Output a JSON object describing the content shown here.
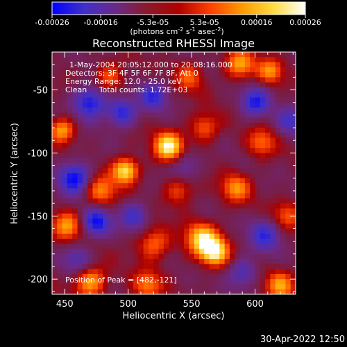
{
  "colorbar": {
    "tick_labels": [
      "-0.00026",
      "-0.00016",
      "-5.3e-05",
      "5.3e-05",
      "0.00016",
      "0.00026"
    ],
    "unit_parts": [
      "(photons cm",
      "-2",
      " s",
      "-1",
      " asec",
      "-2",
      ")"
    ],
    "range": [
      -0.00026,
      0.00026
    ],
    "stops": [
      "#0000ff",
      "#4030c8",
      "#6a2a8a",
      "#8a1a2a",
      "#b00000",
      "#ff4000",
      "#ff9a00",
      "#ffdc40",
      "#ffffff"
    ]
  },
  "chart_data": {
    "type": "heatmap",
    "title": "Reconstructed RHESSI Image",
    "xlabel": "Heliocentric X (arcsec)",
    "ylabel": "Heliocentric Y (arcsec)",
    "xlim": [
      440,
      632
    ],
    "ylim": [
      -212,
      -20
    ],
    "x_ticks": [
      450,
      500,
      550,
      600
    ],
    "y_ticks": [
      -50,
      -100,
      -150,
      -200
    ],
    "grid": false,
    "annotations": [
      "1-May-2004 20:05:12.000 to 20:08:16.000",
      "Detectors: 3F 4F 5F 6F 7F 8F, Att 0",
      "Energy Range: 12.0 - 25.0 keV",
      "Clean     Total counts: 1.72E+03"
    ],
    "peak_label": "Position of Peak = [482,-121]",
    "sources": [
      {
        "x": 532,
        "y": -95,
        "amp": 1.0,
        "w": 8
      },
      {
        "x": 498,
        "y": -114,
        "amp": 0.95,
        "w": 7
      },
      {
        "x": 568,
        "y": -178,
        "amp": 0.95,
        "w": 8
      },
      {
        "x": 558,
        "y": -168,
        "amp": 0.8,
        "w": 9
      },
      {
        "x": 448,
        "y": -82,
        "amp": 0.7,
        "w": 7
      },
      {
        "x": 452,
        "y": -158,
        "amp": 0.65,
        "w": 8
      },
      {
        "x": 588,
        "y": -30,
        "amp": 0.7,
        "w": 8
      },
      {
        "x": 612,
        "y": -35,
        "amp": 0.6,
        "w": 7
      },
      {
        "x": 478,
        "y": -130,
        "amp": 0.6,
        "w": 9
      },
      {
        "x": 520,
        "y": -172,
        "amp": 0.55,
        "w": 9
      },
      {
        "x": 585,
        "y": -128,
        "amp": 0.6,
        "w": 8
      },
      {
        "x": 470,
        "y": -202,
        "amp": 0.7,
        "w": 9
      },
      {
        "x": 515,
        "y": -205,
        "amp": 0.55,
        "w": 8
      },
      {
        "x": 620,
        "y": -205,
        "amp": 0.65,
        "w": 8
      },
      {
        "x": 560,
        "y": -80,
        "amp": 0.5,
        "w": 8
      },
      {
        "x": 605,
        "y": -92,
        "amp": 0.5,
        "w": 8
      },
      {
        "x": 548,
        "y": -40,
        "amp": 0.45,
        "w": 8
      },
      {
        "x": 485,
        "y": -40,
        "amp": 0.5,
        "w": 8
      },
      {
        "x": 625,
        "y": -150,
        "amp": 0.45,
        "w": 8
      },
      {
        "x": 540,
        "y": -130,
        "amp": 0.45,
        "w": 8
      },
      {
        "x": 470,
        "y": -60,
        "amp": -0.8,
        "w": 9
      },
      {
        "x": 495,
        "y": -68,
        "amp": -0.7,
        "w": 8
      },
      {
        "x": 458,
        "y": -120,
        "amp": -0.85,
        "w": 9
      },
      {
        "x": 475,
        "y": -155,
        "amp": -0.8,
        "w": 8
      },
      {
        "x": 520,
        "y": -55,
        "amp": -0.6,
        "w": 8
      },
      {
        "x": 600,
        "y": -60,
        "amp": -0.7,
        "w": 8
      },
      {
        "x": 628,
        "y": -75,
        "amp": -0.5,
        "w": 8
      },
      {
        "x": 608,
        "y": -165,
        "amp": -0.6,
        "w": 9
      },
      {
        "x": 545,
        "y": -110,
        "amp": -0.4,
        "w": 8
      },
      {
        "x": 505,
        "y": -150,
        "amp": -0.55,
        "w": 8
      },
      {
        "x": 590,
        "y": -195,
        "amp": -0.5,
        "w": 8
      },
      {
        "x": 460,
        "y": -185,
        "amp": -0.45,
        "w": 8
      }
    ]
  },
  "timestamp": "30-Apr-2022 12:50"
}
